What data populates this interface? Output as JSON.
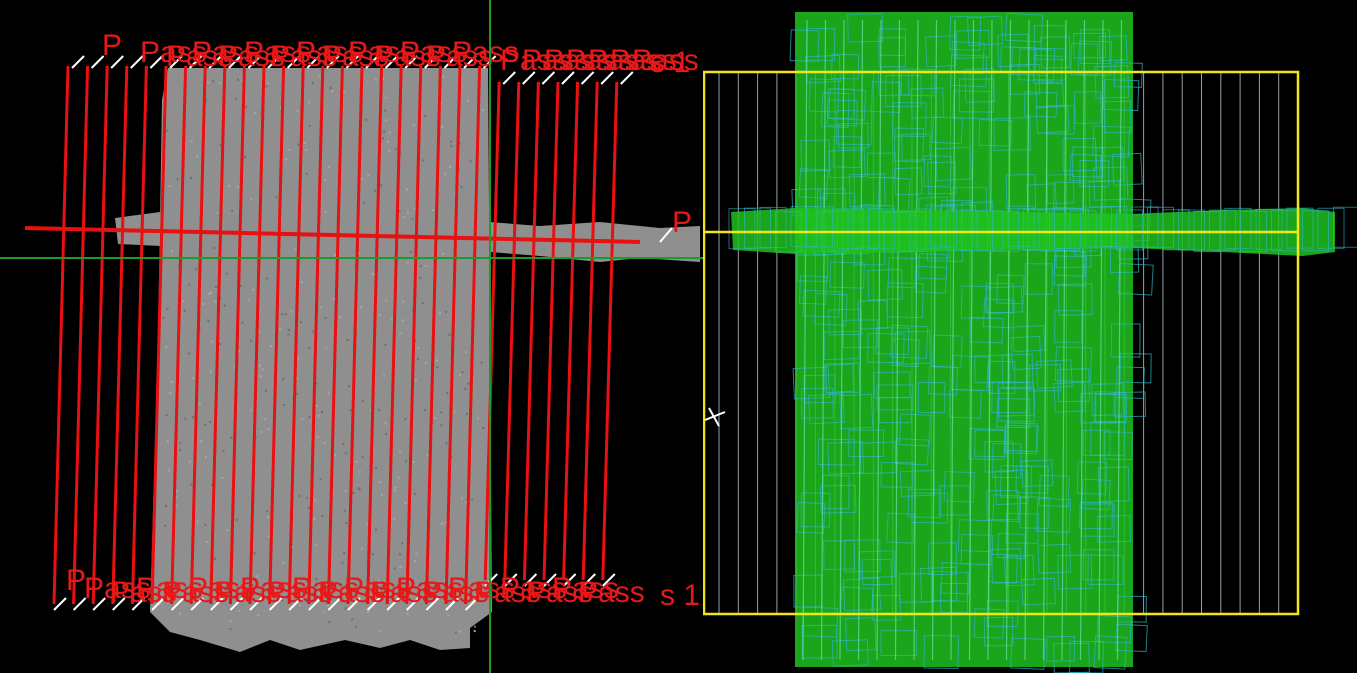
{
  "colors": {
    "flight_line": "#e81010",
    "label": "#e81818",
    "crosshair": "#1f9a2a",
    "orthomosaic_fill": "#8f8f8f",
    "footprint_fill": "#1ec21e",
    "footprint_outline": "#2fb5c8",
    "boundary": "#f2e61a",
    "grid_line": "#c9d6e0",
    "cursor": "#ffffff"
  },
  "left_view": {
    "name": "flight-plan-overlay",
    "label_prefix": "P",
    "top_label_text": "Pass",
    "pass_count_top": 13,
    "pass_count_right": 7,
    "cross_label": "P",
    "right_trailing_label": "s 1",
    "bottom_label_text": "Pass",
    "bottom_trailing_label": "s 1"
  },
  "right_view": {
    "name": "image-footprint-coverage",
    "cursor_icon": "crosshair-cursor-icon",
    "boundary_shape": "rectangle",
    "cross_strip": true
  }
}
